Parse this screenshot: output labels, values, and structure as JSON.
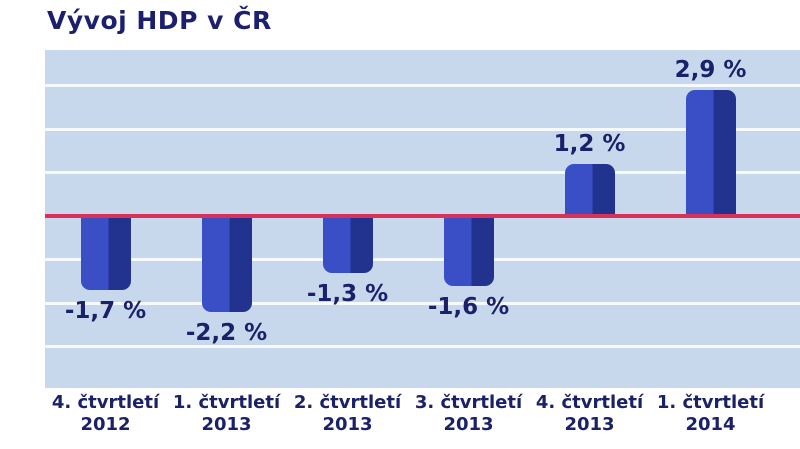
{
  "title": "Vývoj HDP v ČR",
  "chart_data": {
    "type": "bar",
    "title": "Vývoj HDP v ČR",
    "xlabel": "",
    "ylabel": "",
    "unit": "%",
    "categories": [
      {
        "line1": "4. čtvrtletí",
        "line2": "2012"
      },
      {
        "line1": "1. čtvrtletí",
        "line2": "2013"
      },
      {
        "line1": "2. čtvrtletí",
        "line2": "2013"
      },
      {
        "line1": "3. čtvrtletí",
        "line2": "2013"
      },
      {
        "line1": "4. čtvrtletí",
        "line2": "2013"
      },
      {
        "line1": "1. čtvrtletí",
        "line2": "2014"
      }
    ],
    "values": [
      -1.7,
      -2.2,
      -1.3,
      -1.6,
      1.2,
      2.9
    ],
    "value_labels": [
      "-1,7 %",
      "-2,2 %",
      "-1,3 %",
      "-1,6 %",
      "1,2 %",
      "2,9 %"
    ],
    "ylim": [
      -4,
      4
    ],
    "grid": "on",
    "grid_step": 1,
    "legend": "none",
    "colors": {
      "bar_light": "#3a4ec5",
      "bar_dark": "#22338f",
      "zero_line": "#d93158",
      "plot_background": "#c8d8ec",
      "gridline": "#f6fafd",
      "text": "#1b2168"
    }
  }
}
